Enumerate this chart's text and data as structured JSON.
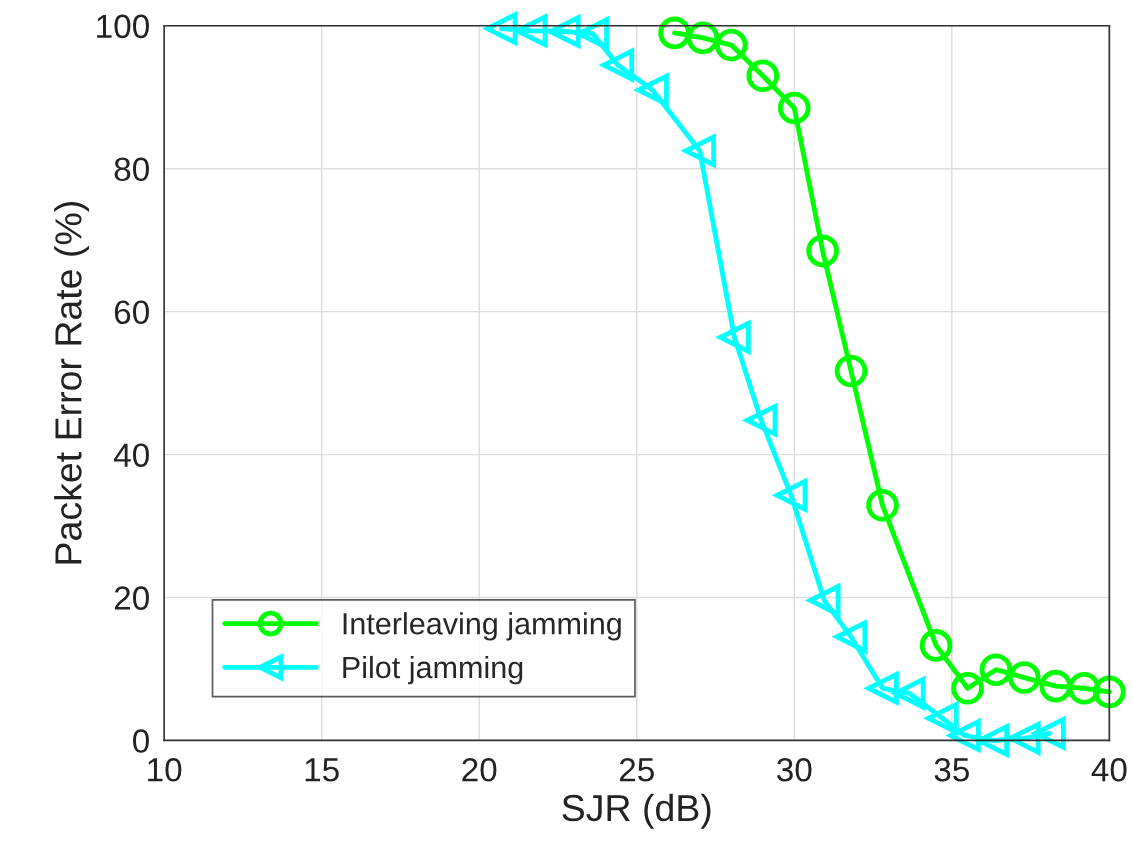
{
  "chart_data": {
    "type": "line",
    "xlabel": "SJR (dB)",
    "ylabel": "Packet Error Rate (%)",
    "xlim": [
      10,
      40
    ],
    "xticks": [
      10,
      15,
      20,
      25,
      30,
      35,
      40
    ],
    "ylim": [
      0,
      100
    ],
    "yticks": [
      0,
      20,
      40,
      60,
      80,
      100
    ],
    "grid": true,
    "legend": "bottom left",
    "line_style": "solid",
    "series": [
      {
        "name": "Interleaving jamming",
        "color": "#00ff00",
        "marker": "circle",
        "x": [
          26.2,
          27.1,
          28.0,
          29.0,
          30.0,
          30.9,
          31.8,
          32.8,
          34.5,
          35.5,
          36.4,
          37.3,
          38.3,
          39.2,
          40.0
        ],
        "values": [
          99.0,
          98.3,
          97.3,
          93.0,
          88.5,
          68.5,
          51.7,
          32.9,
          13.3,
          7.3,
          9.9,
          8.8,
          7.6,
          7.3,
          6.8
        ]
      },
      {
        "name": "Pilot jamming",
        "color": "#00ffff",
        "marker": "triangle",
        "x": [
          20.7,
          21.65,
          22.7,
          23.6,
          24.4,
          25.5,
          27.0,
          28.1,
          28.95,
          29.9,
          30.95,
          31.8,
          32.8,
          33.65,
          34.7,
          35.4,
          36.3,
          37.3,
          38.1
        ],
        "values": [
          99.6,
          99.3,
          99.2,
          98.9,
          94.5,
          91.0,
          82.5,
          56.4,
          44.8,
          34.3,
          19.6,
          14.5,
          7.3,
          6.6,
          3.1,
          0.7,
          0.0,
          0.3,
          1.0
        ]
      }
    ]
  }
}
